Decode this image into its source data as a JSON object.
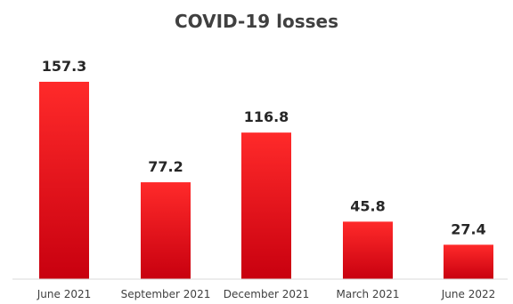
{
  "chart_data": {
    "type": "bar",
    "title": "COVID-19 losses",
    "categories": [
      "June 2021",
      "September 2021",
      "December 2021",
      "March 2021",
      "June 2022"
    ],
    "values": [
      157.3,
      77.2,
      116.8,
      45.8,
      27.4
    ],
    "value_labels": [
      "157.3",
      "77.2",
      "116.8",
      "45.8",
      "27.4"
    ],
    "xlabel": "",
    "ylabel": "",
    "ylim": [
      0,
      160
    ],
    "grid": false,
    "legend": "none",
    "colors": {
      "bar_top": "#ff2a2a",
      "bar_bottom": "#c8000f",
      "axis": "#d9d9d9"
    }
  }
}
